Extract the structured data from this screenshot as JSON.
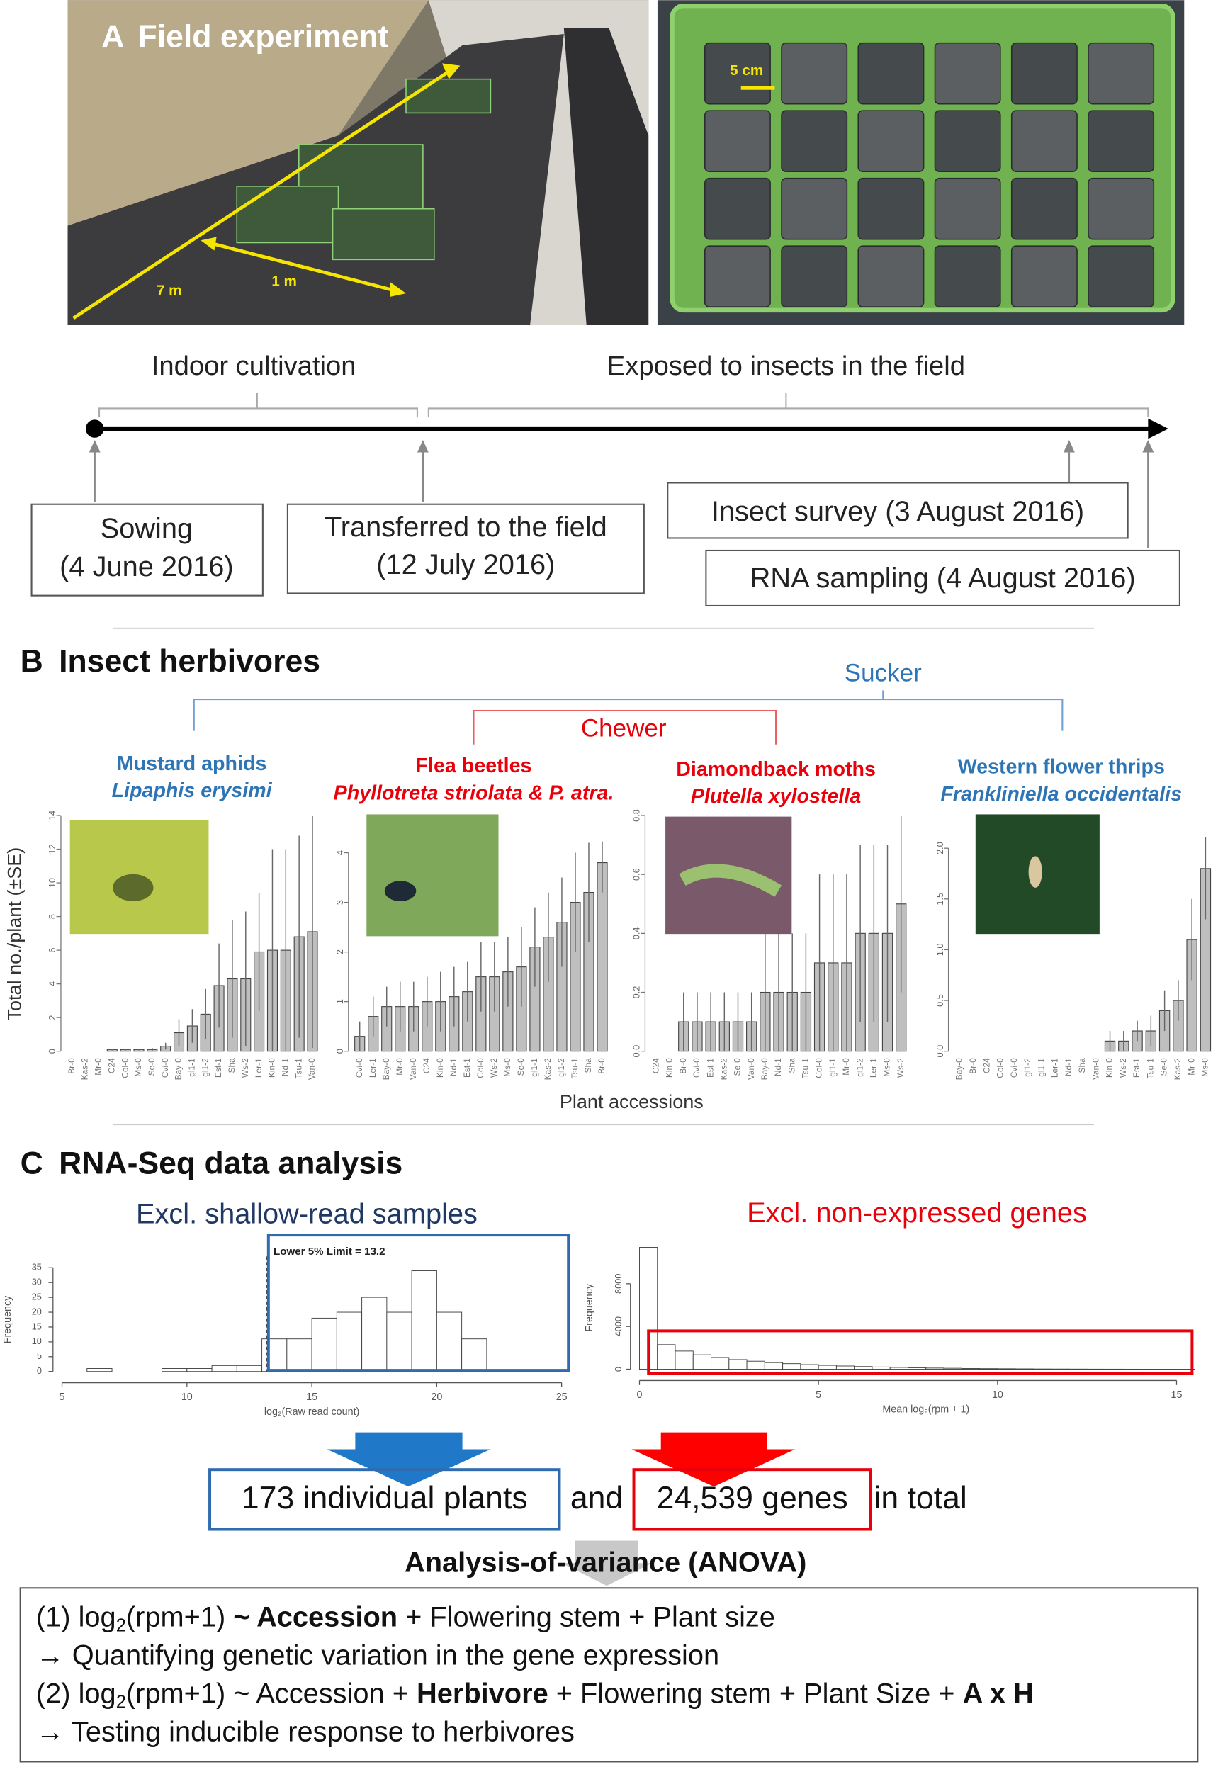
{
  "panel_a": {
    "label": "A",
    "title": "Field experiment",
    "photo_labels": [
      "7 m",
      "1 m",
      "5 cm"
    ],
    "phases": [
      "Indoor cultivation",
      "Exposed to insects in the field"
    ],
    "events": [
      [
        "Sowing",
        "(4 June 2016)"
      ],
      [
        "Transferred to the field",
        "(12 July 2016)"
      ],
      [
        "Insect survey (3 August 2016)"
      ],
      [
        "RNA sampling (4 August 2016)"
      ]
    ]
  },
  "panel_b": {
    "label": "B",
    "title": "Insect herbivores",
    "guilds": [
      "Sucker",
      "Chewer"
    ],
    "y_label": "Total no./plant (±SE)",
    "x_label": "Plant accessions"
  },
  "chart_data": [
    {
      "type": "bar",
      "title": "Mustard aphids",
      "subtitle": "Lipaphis erysimi",
      "title_color": "#2e75b6",
      "color": "#bfbfbf",
      "categories": [
        "Br-0",
        "Kas-2",
        "Mr-0",
        "C24",
        "Col-0",
        "Ms-0",
        "Se-0",
        "Cvi-0",
        "Bay-0",
        "gl1-1",
        "gl1-2",
        "Est-1",
        "Sha",
        "Ws-2",
        "Ler-1",
        "Kin-0",
        "Nd-1",
        "Tsu-1",
        "Van-0"
      ],
      "values": [
        0,
        0,
        0,
        0.1,
        0.1,
        0.1,
        0.1,
        0.3,
        1.1,
        1.5,
        2.2,
        3.9,
        4.3,
        4.3,
        5.9,
        6.0,
        6.0,
        6.8,
        7.1
      ],
      "errors": [
        0,
        0,
        0,
        0.05,
        0.05,
        0.05,
        0.1,
        0.2,
        0.8,
        1.0,
        1.5,
        2.5,
        3.5,
        4.0,
        3.5,
        6.0,
        6.0,
        6.0,
        6.9
      ],
      "ylim": [
        0,
        14
      ],
      "yticks": [
        0,
        2,
        4,
        6,
        8,
        10,
        12,
        14
      ]
    },
    {
      "type": "bar",
      "title": "Flea beetles",
      "subtitle": "Phyllotreta striolata & P. atra.",
      "title_color": "#e8000b",
      "color": "#bfbfbf",
      "categories": [
        "Cvi-0",
        "Ler-1",
        "Bay-0",
        "Mr-0",
        "Van-0",
        "C24",
        "Kin-0",
        "Nd-1",
        "Est-1",
        "Col-0",
        "Ws-2",
        "Ms-0",
        "Se-0",
        "gl1-1",
        "Kas-2",
        "gl1-2",
        "Tsu-1",
        "Sha",
        "Br-0"
      ],
      "values": [
        0.3,
        0.7,
        0.9,
        0.9,
        0.9,
        1.0,
        1.0,
        1.1,
        1.2,
        1.5,
        1.5,
        1.6,
        1.7,
        2.1,
        2.3,
        2.6,
        3.0,
        3.2,
        3.8
      ],
      "errors": [
        0.3,
        0.4,
        0.4,
        0.5,
        0.5,
        0.5,
        0.6,
        0.6,
        0.6,
        0.7,
        0.7,
        0.7,
        0.8,
        0.8,
        0.9,
        0.9,
        1.0,
        1.0,
        0.6
      ],
      "ylim": [
        0,
        4
      ],
      "yticks": [
        0,
        1,
        2,
        3,
        4
      ]
    },
    {
      "type": "bar",
      "title": "Diamondback moths",
      "subtitle": "Plutella xylostella",
      "title_color": "#e8000b",
      "color": "#bfbfbf",
      "categories": [
        "C24",
        "Kin-0",
        "Br-0",
        "Cvi-0",
        "Est-1",
        "Kas-2",
        "Se-0",
        "Van-0",
        "Bay-0",
        "Nd-1",
        "Sha",
        "Tsu-1",
        "Col-0",
        "gl1-1",
        "Mr-0",
        "gl1-2",
        "Ler-1",
        "Ms-0",
        "Ws-2"
      ],
      "values": [
        0,
        0,
        0.1,
        0.1,
        0.1,
        0.1,
        0.1,
        0.1,
        0.2,
        0.2,
        0.2,
        0.2,
        0.3,
        0.3,
        0.3,
        0.4,
        0.4,
        0.4,
        0.5
      ],
      "errors": [
        0,
        0,
        0.1,
        0.1,
        0.1,
        0.1,
        0.1,
        0.1,
        0.2,
        0.2,
        0.2,
        0.2,
        0.3,
        0.3,
        0.3,
        0.3,
        0.3,
        0.3,
        0.3
      ],
      "ylim": [
        0,
        0.8
      ],
      "yticks": [
        {
          "value": 0,
          "label": "0.0"
        },
        {
          "value": 0.2,
          "label": "0.2"
        },
        {
          "value": 0.4,
          "label": "0.4"
        },
        {
          "value": 0.6,
          "label": "0.6"
        },
        {
          "value": 0.8,
          "label": "0.8"
        }
      ]
    },
    {
      "type": "bar",
      "title": "Western flower thrips",
      "subtitle": "Frankliniella occidentalis",
      "title_color": "#2e75b6",
      "color": "#bfbfbf",
      "categories": [
        "Bay-0",
        "Br-0",
        "C24",
        "Col-0",
        "Cvi-0",
        "gl1-2",
        "gl1-1",
        "Ler-1",
        "Nd-1",
        "Sha",
        "Van-0",
        "Kin-0",
        "Ws-2",
        "Est-1",
        "Tsu-1",
        "Se-0",
        "Kas-2",
        "Mr-0",
        "Ms-0"
      ],
      "values": [
        0,
        0,
        0,
        0,
        0,
        0,
        0,
        0,
        0,
        0,
        0,
        0.1,
        0.1,
        0.2,
        0.2,
        0.4,
        0.5,
        1.1,
        1.8
      ],
      "errors": [
        0,
        0,
        0,
        0,
        0,
        0,
        0,
        0,
        0,
        0,
        0,
        0.1,
        0.1,
        0.1,
        0.15,
        0.2,
        0.2,
        0.4,
        0.5
      ],
      "ylim": [
        0,
        2
      ],
      "yticks": [
        {
          "value": 0,
          "label": "0.0"
        },
        {
          "value": 0.5,
          "label": "0.5"
        },
        {
          "value": 1,
          "label": "1.0"
        },
        {
          "value": 1.5,
          "label": "1.5"
        },
        {
          "value": 2,
          "label": "2.0"
        }
      ]
    },
    {
      "type": "histogram",
      "title": "Excl. shallow-read samples",
      "title_color": "#1f3864",
      "color": "#ffffff",
      "highlight": "#2e6bb0",
      "xlabel": "log₂(Raw read count)",
      "ylabel": "Frequency",
      "annotation": "Lower 5% Limit = 13.2",
      "threshold": 13.2,
      "bins": [
        5,
        6,
        7,
        8,
        9,
        10,
        11,
        12,
        13,
        14,
        15,
        16,
        17,
        18,
        19,
        20,
        21,
        22,
        23,
        24,
        25
      ],
      "counts": [
        0,
        1,
        0,
        0,
        1,
        1,
        2,
        2,
        11,
        11,
        18,
        20,
        25,
        20,
        34,
        20,
        11,
        0,
        0,
        0
      ],
      "xlim": [
        5,
        25
      ],
      "xticks": [
        5,
        10,
        15,
        20,
        25
      ],
      "ylim": [
        0,
        35
      ],
      "yticks": [
        0,
        5,
        10,
        15,
        20,
        25,
        30,
        35
      ]
    },
    {
      "type": "histogram",
      "title": "Excl. non-expressed genes",
      "title_color": "#e8000b",
      "color": "#ffffff",
      "highlight": "#e8000b",
      "xlabel": "Mean log₂(rpm + 1)",
      "ylabel": "Frequency",
      "bins": [
        0,
        0.5,
        1,
        1.5,
        2,
        2.5,
        3,
        3.5,
        4,
        4.5,
        5,
        5.5,
        6,
        6.5,
        7,
        7.5,
        8,
        8.5,
        9,
        9.5,
        10,
        10.5,
        11,
        11.5,
        12,
        12.5,
        13,
        13.5,
        14,
        14.5,
        15,
        15.5,
        16
      ],
      "counts": [
        11400,
        2300,
        1700,
        1350,
        1100,
        900,
        750,
        620,
        520,
        430,
        360,
        300,
        250,
        210,
        170,
        140,
        110,
        90,
        70,
        55,
        45,
        35,
        25,
        20,
        15,
        10,
        8,
        5,
        3,
        2,
        1,
        0
      ],
      "xlim": [
        0,
        16
      ],
      "xticks": [
        0,
        5,
        10,
        15
      ],
      "ylim": [
        0,
        11500
      ],
      "yticks": [
        0,
        4000,
        8000
      ]
    }
  ],
  "panel_c": {
    "label": "C",
    "title": "RNA-Seq data analysis",
    "results": [
      "173 individual plants",
      "and",
      "24,539 genes",
      "in total"
    ],
    "anova_title": "Analysis-of-variance (ANOVA)",
    "anova_lines": [
      [
        {
          "text": "(1) log"
        },
        {
          "text": "2",
          "sub": true
        },
        {
          "text": "(rpm+1) "
        },
        {
          "text": "~ Accession",
          "bold": true
        },
        {
          "text": " + Flowering stem + Plant size"
        }
      ],
      [
        {
          "text": "→ Quantifying genetic variation in the gene expression"
        }
      ],
      [
        {
          "text": "(2) log"
        },
        {
          "text": "2",
          "sub": true
        },
        {
          "text": "(rpm+1) ~ Accession + "
        },
        {
          "text": "Herbivore",
          "bold": true
        },
        {
          "text": " + Flowering stem + Plant Size + "
        },
        {
          "text": "A x H",
          "bold": true
        }
      ],
      [
        {
          "text": "→ Testing inducible response to herbivores"
        }
      ]
    ]
  }
}
